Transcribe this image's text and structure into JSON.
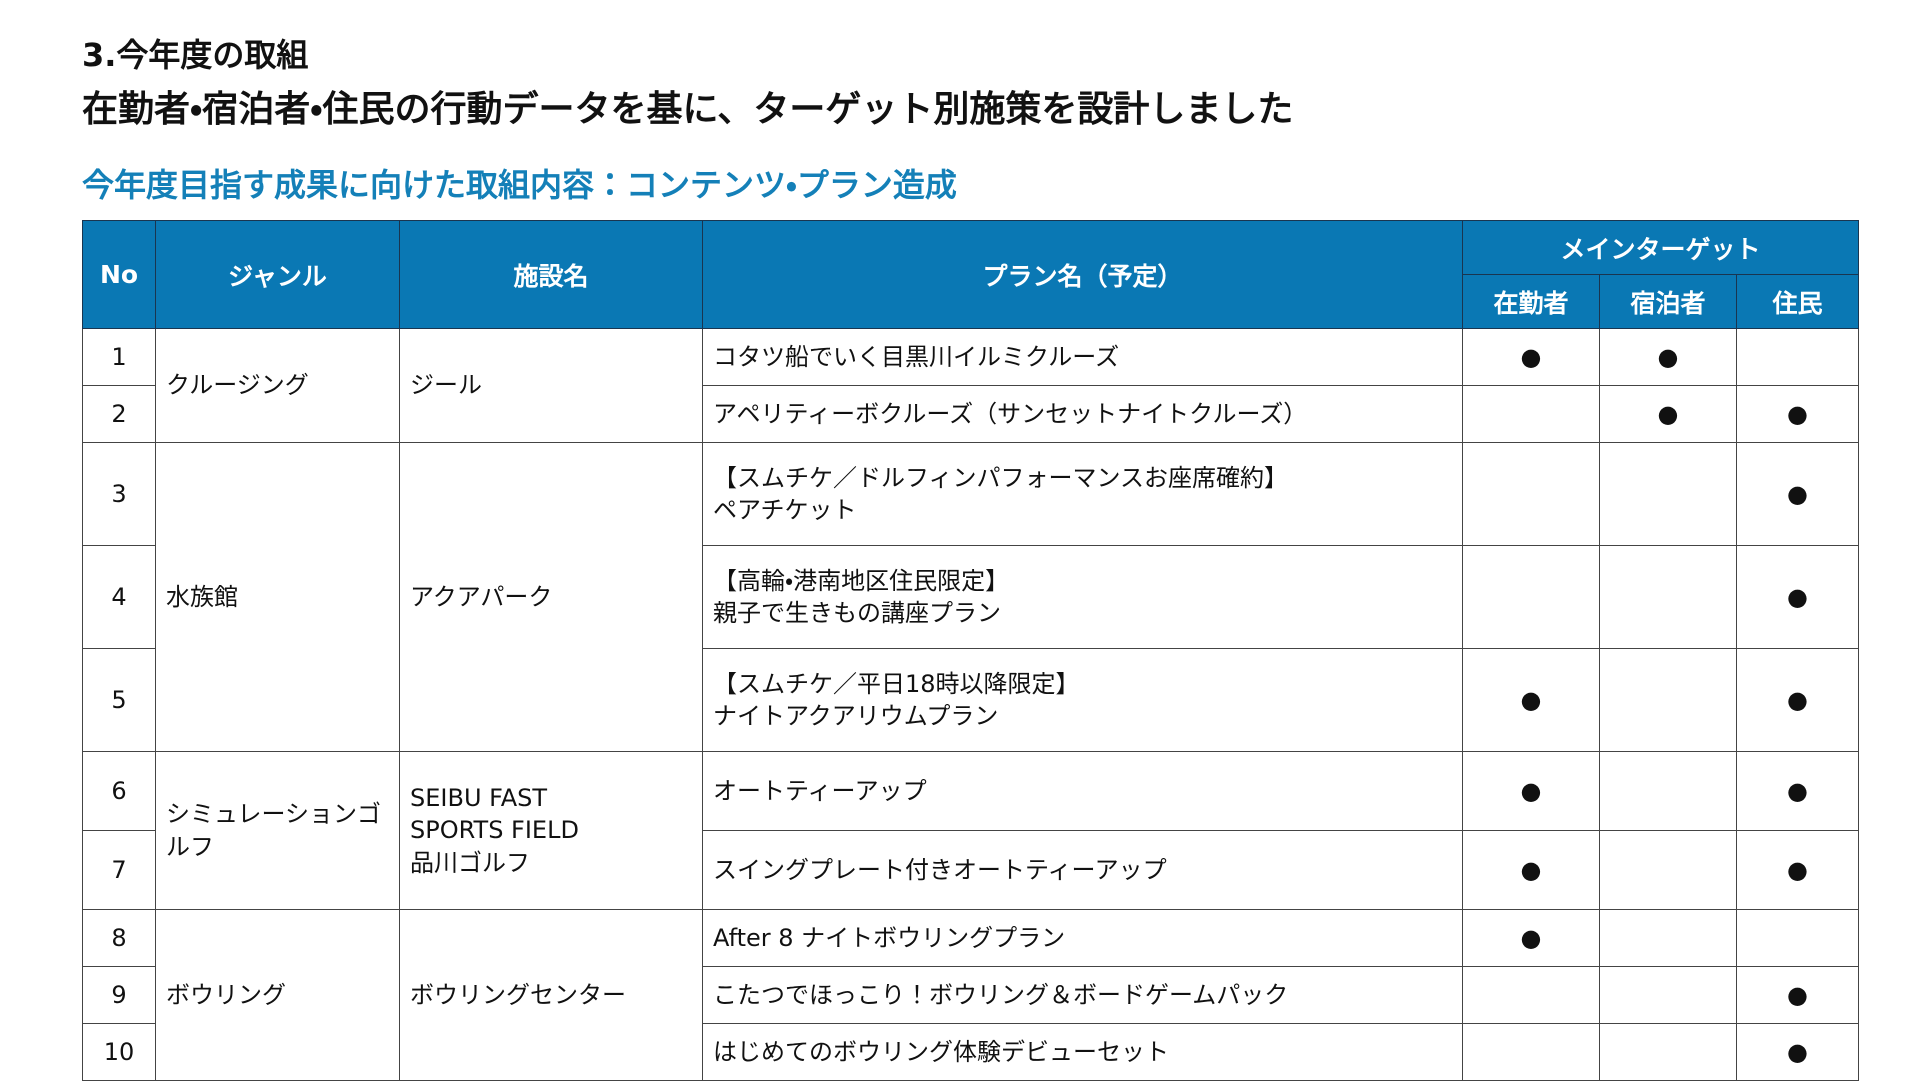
{
  "header": {
    "section": "3.今年度の取組",
    "title": "在勤者・宿泊者・住民の行動データを基に、ターゲット別施策を設計しました",
    "subtitle": "今年度目指す成果に向けた取組内容：コンテンツ・プラン造成"
  },
  "table": {
    "columns": {
      "no": "No",
      "genre": "ジャンル",
      "facility": "施設名",
      "plan": "プラン名（予定）",
      "target": "メインターゲット",
      "targets": [
        "在勤者",
        "宿泊者",
        "住民"
      ]
    },
    "groups": [
      {
        "genre": "クルージング",
        "facility": [
          "ジール"
        ],
        "rows": [
          {
            "no": "1",
            "plan": [
              "コタツ船でいく目黒川イルミクルーズ"
            ],
            "marks": [
              "●",
              "●",
              null
            ]
          },
          {
            "no": "2",
            "plan": [
              "アペリティーボクルーズ（サンセットナイトクルーズ）"
            ],
            "marks": [
              null,
              "●",
              "●"
            ]
          }
        ]
      },
      {
        "genre": "水族館",
        "facility": [
          "アクアパーク"
        ],
        "rows": [
          {
            "no": "3",
            "plan": [
              "【スムチケ／ドルフィンパフォーマンスお座席確約】",
              "ペアチケット"
            ],
            "marks": [
              null,
              null,
              "●"
            ]
          },
          {
            "no": "4",
            "plan": [
              "【高輪・港南地区住民限定】",
              "親子で生きもの講座プラン"
            ],
            "marks": [
              null,
              null,
              "●"
            ]
          },
          {
            "no": "5",
            "plan": [
              "【スムチケ／平日18時以降限定】",
              "ナイトアクアリウムプラン"
            ],
            "marks": [
              "●",
              null,
              "●"
            ]
          }
        ]
      },
      {
        "genre": "シミュレーションゴルフ",
        "facility": [
          "SEIBU FAST",
          "SPORTS FIELD",
          "品川ゴルフ"
        ],
        "rows": [
          {
            "no": "6",
            "plan": [
              "オートティーアップ"
            ],
            "marks": [
              "●",
              null,
              "●"
            ]
          },
          {
            "no": "7",
            "plan": [
              "スイングプレート付きオートティーアップ"
            ],
            "marks": [
              "●",
              null,
              "●"
            ]
          }
        ]
      },
      {
        "genre": "ボウリング",
        "facility": [
          "ボウリングセンター"
        ],
        "rows": [
          {
            "no": "8",
            "plan": [
              "After 8 ナイトボウリングプラン"
            ],
            "marks": [
              "●",
              null,
              null
            ]
          },
          {
            "no": "9",
            "plan": [
              "こたつでほっこり！ボウリング＆ボードゲームパック"
            ],
            "marks": [
              null,
              null,
              "●"
            ]
          },
          {
            "no": "10",
            "plan": [
              "はじめてのボウリング体験デビューセット"
            ],
            "marks": [
              null,
              null,
              "●"
            ]
          }
        ]
      }
    ]
  }
}
